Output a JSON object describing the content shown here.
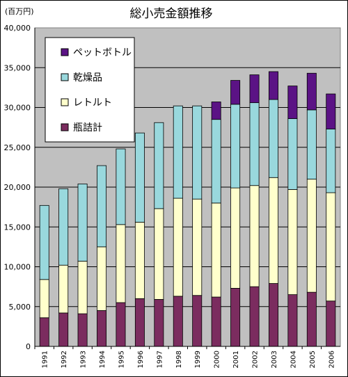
{
  "chart_data": {
    "type": "bar",
    "stacked": true,
    "title": "総小売金額推移",
    "unit_label": "(百万円)",
    "categories": [
      "1991",
      "1992",
      "1993",
      "1994",
      "1995",
      "1996",
      "1997",
      "1998",
      "1999",
      "2000",
      "2001",
      "2002",
      "2003",
      "2004",
      "2005",
      "2006"
    ],
    "series": [
      {
        "name": "瓶詰計",
        "color": "#7b2c5f",
        "values": [
          3600,
          4200,
          4100,
          4500,
          5500,
          6000,
          5900,
          6300,
          6400,
          6200,
          7300,
          7500,
          7900,
          6500,
          6800,
          5700
        ]
      },
      {
        "name": "レトルト",
        "color": "#ffffcc",
        "values": [
          4800,
          6000,
          6600,
          8000,
          9800,
          9600,
          11400,
          12300,
          12100,
          11800,
          12600,
          12700,
          13300,
          13200,
          14200,
          13600
        ]
      },
      {
        "name": "乾燥品",
        "color": "#99d8dd",
        "values": [
          9300,
          9600,
          9700,
          10200,
          9500,
          11200,
          10800,
          11600,
          11700,
          10500,
          10500,
          10400,
          9800,
          8900,
          8700,
          8000
        ]
      },
      {
        "name": "ペットボトル",
        "color": "#5b1385",
        "values": [
          0,
          0,
          0,
          0,
          0,
          0,
          0,
          0,
          0,
          2200,
          3000,
          3500,
          3500,
          4100,
          4600,
          4400
        ]
      }
    ],
    "legend_order": [
      "ペットボトル",
      "乾燥品",
      "レトルト",
      "瓶詰計"
    ],
    "legend_placement": "top-left",
    "ylim": [
      0,
      40000
    ],
    "yticks": [
      "0",
      "5,000",
      "10,000",
      "15,000",
      "20,000",
      "25,000",
      "30,000",
      "35,000",
      "40,000"
    ],
    "grid": true,
    "plot_background": "#c0c0c0"
  }
}
